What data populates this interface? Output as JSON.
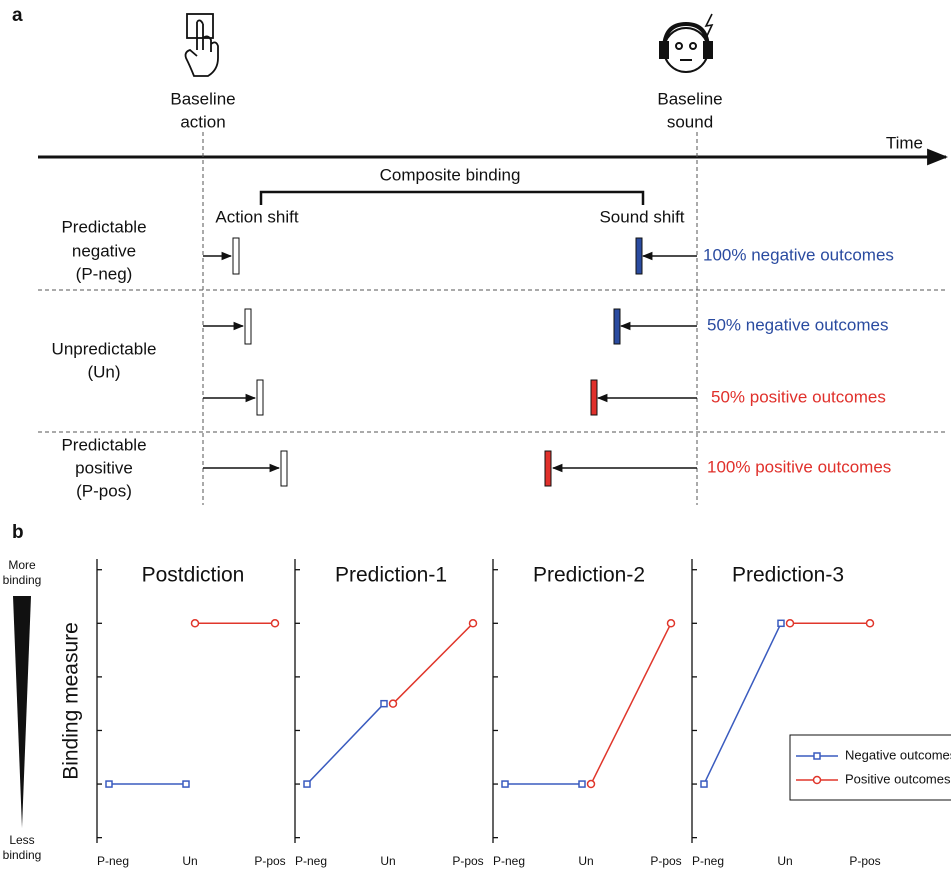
{
  "panel_a": {
    "label": "a",
    "baseline_action": [
      "Baseline",
      "action"
    ],
    "baseline_sound": [
      "Baseline",
      "sound"
    ],
    "time": "Time",
    "composite": "Composite binding",
    "action_shift": "Action shift",
    "sound_shift": "Sound shift",
    "groups": [
      [
        "Predictable",
        "negative",
        "(P-neg)"
      ],
      [
        "Unpredictable",
        "(Un)"
      ],
      [
        "Predictable",
        "positive",
        "(P-pos)"
      ]
    ],
    "outcomes": [
      "100% negative outcomes",
      "50% negative outcomes",
      "50% positive outcomes",
      "100% positive outcomes"
    ]
  },
  "panel_b": {
    "label": "b",
    "more": [
      "More",
      "binding"
    ],
    "less": [
      "Less",
      "binding"
    ]
  },
  "chart_data": [
    {
      "type": "line",
      "title": "Postdiction",
      "ylabel": "Binding measure",
      "categories": [
        "P-neg",
        "Un",
        "P-pos"
      ],
      "series": [
        {
          "color": "#3a5bbf",
          "marker": "square",
          "values": [
            1,
            1,
            null
          ]
        },
        {
          "color": "#e0362b",
          "marker": "circle",
          "values": [
            null,
            4,
            4
          ]
        }
      ],
      "ylim": [
        -0.1,
        5.2
      ],
      "yticks": [
        0,
        1,
        2,
        3,
        4,
        5
      ]
    },
    {
      "type": "line",
      "title": "Prediction-1",
      "categories": [
        "P-neg",
        "Un",
        "P-pos"
      ],
      "series": [
        {
          "color": "#3a5bbf",
          "marker": "square",
          "values": [
            1,
            2.5,
            null
          ]
        },
        {
          "color": "#e0362b",
          "marker": "circle",
          "values": [
            null,
            2.5,
            4
          ]
        }
      ],
      "ylim": [
        -0.1,
        5.2
      ],
      "yticks": [
        0,
        1,
        2,
        3,
        4,
        5
      ]
    },
    {
      "type": "line",
      "title": "Prediction-2",
      "categories": [
        "P-neg",
        "Un",
        "P-pos"
      ],
      "series": [
        {
          "color": "#3a5bbf",
          "marker": "square",
          "values": [
            1,
            1,
            null
          ]
        },
        {
          "color": "#e0362b",
          "marker": "circle",
          "values": [
            null,
            1,
            4
          ]
        }
      ],
      "ylim": [
        -0.1,
        5.2
      ],
      "yticks": [
        0,
        1,
        2,
        3,
        4,
        5
      ]
    },
    {
      "type": "line",
      "title": "Prediction-3",
      "categories": [
        "P-neg",
        "Un",
        "P-pos"
      ],
      "series": [
        {
          "name": "Negative outcomes",
          "color": "#3a5bbf",
          "marker": "square",
          "values": [
            1,
            4,
            null
          ]
        },
        {
          "name": "Positive outcomes",
          "color": "#e0362b",
          "marker": "circle",
          "values": [
            null,
            4,
            4
          ]
        }
      ],
      "ylim": [
        -0.1,
        5.2
      ],
      "yticks": [
        0,
        1,
        2,
        3,
        4,
        5
      ],
      "legend": "lower right"
    }
  ]
}
